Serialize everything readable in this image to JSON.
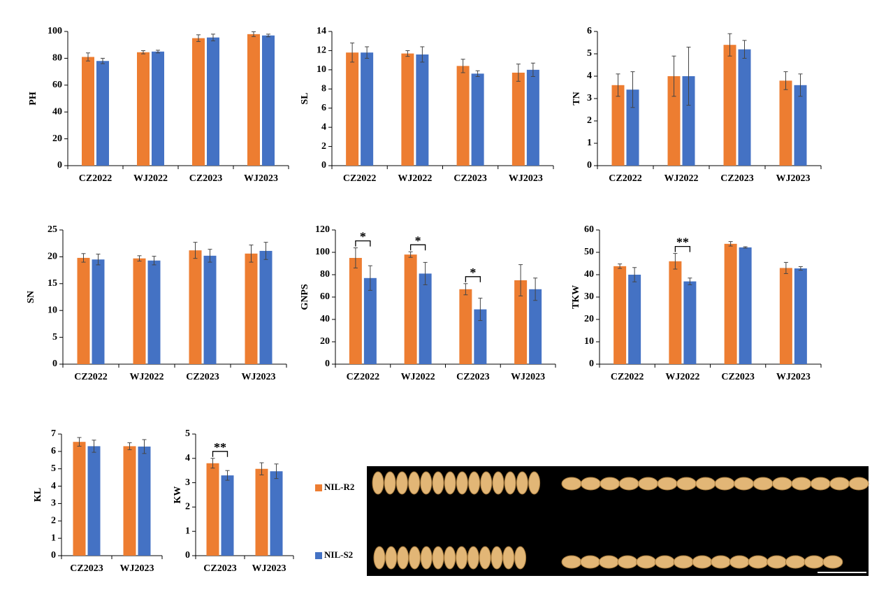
{
  "chart_data": [
    {
      "type": "bar",
      "ylabel": "PH",
      "categories": [
        "CZ2022",
        "WJ2022",
        "CZ2023",
        "WJ2023"
      ],
      "ylim": [
        0,
        100
      ],
      "yticks": [
        0,
        20,
        40,
        60,
        80,
        100
      ],
      "series": [
        {
          "name": "NIL-R2",
          "color": "#ed7d31",
          "values": [
            81,
            84.5,
            95,
            98
          ],
          "errors": [
            3,
            1.2,
            2.5,
            1.8
          ]
        },
        {
          "name": "NIL-S2",
          "color": "#4472c4",
          "values": [
            78,
            85,
            95.5,
            97
          ],
          "errors": [
            2,
            1,
            2.5,
            1
          ]
        }
      ]
    },
    {
      "type": "bar",
      "ylabel": "SL",
      "categories": [
        "CZ2022",
        "WJ2022",
        "CZ2023",
        "WJ2023"
      ],
      "ylim": [
        0,
        14
      ],
      "yticks": [
        0,
        2,
        4,
        6,
        8,
        10,
        12,
        14
      ],
      "series": [
        {
          "name": "NIL-R2",
          "color": "#ed7d31",
          "values": [
            11.8,
            11.7,
            10.4,
            9.7
          ],
          "errors": [
            1.0,
            0.3,
            0.7,
            0.9
          ]
        },
        {
          "name": "NIL-S2",
          "color": "#4472c4",
          "values": [
            11.8,
            11.6,
            9.6,
            10.0
          ],
          "errors": [
            0.6,
            0.8,
            0.3,
            0.7
          ]
        }
      ]
    },
    {
      "type": "bar",
      "ylabel": "TN",
      "categories": [
        "CZ2022",
        "WJ2022",
        "CZ2023",
        "WJ2023"
      ],
      "ylim": [
        0,
        6
      ],
      "yticks": [
        0,
        1,
        2,
        3,
        4,
        5,
        6
      ],
      "series": [
        {
          "name": "NIL-R2",
          "color": "#ed7d31",
          "values": [
            3.6,
            4.0,
            5.4,
            3.8
          ],
          "errors": [
            0.5,
            0.9,
            0.5,
            0.4
          ]
        },
        {
          "name": "NIL-S2",
          "color": "#4472c4",
          "values": [
            3.4,
            4.0,
            5.2,
            3.6
          ],
          "errors": [
            0.8,
            1.3,
            0.4,
            0.5
          ]
        }
      ]
    },
    {
      "type": "bar",
      "ylabel": "SN",
      "categories": [
        "CZ2022",
        "WJ2022",
        "CZ2023",
        "WJ2023"
      ],
      "ylim": [
        0,
        25
      ],
      "yticks": [
        0,
        5,
        10,
        15,
        20,
        25
      ],
      "series": [
        {
          "name": "NIL-R2",
          "color": "#ed7d31",
          "values": [
            19.8,
            19.7,
            21.2,
            20.6
          ],
          "errors": [
            0.8,
            0.5,
            1.5,
            1.6
          ]
        },
        {
          "name": "NIL-S2",
          "color": "#4472c4",
          "values": [
            19.5,
            19.3,
            20.2,
            21.1
          ],
          "errors": [
            1.0,
            0.8,
            1.2,
            1.6
          ]
        }
      ]
    },
    {
      "type": "bar",
      "ylabel": "GNPS",
      "categories": [
        "CZ2022",
        "WJ2022",
        "CZ2023",
        "WJ2023"
      ],
      "ylim": [
        0,
        120
      ],
      "yticks": [
        0,
        20,
        40,
        60,
        80,
        100,
        120
      ],
      "series": [
        {
          "name": "NIL-R2",
          "color": "#ed7d31",
          "values": [
            95,
            98,
            67,
            75
          ],
          "errors": [
            9,
            2.5,
            5,
            14
          ]
        },
        {
          "name": "NIL-S2",
          "color": "#4472c4",
          "values": [
            77,
            81,
            49,
            67
          ],
          "errors": [
            11,
            10,
            10,
            10
          ]
        }
      ],
      "annotations": [
        {
          "category": "CZ2022",
          "label": "*"
        },
        {
          "category": "WJ2022",
          "label": "*"
        },
        {
          "category": "CZ2023",
          "label": "*"
        }
      ]
    },
    {
      "type": "bar",
      "ylabel": "TKW",
      "categories": [
        "CZ2022",
        "WJ2022",
        "CZ2023",
        "WJ2023"
      ],
      "ylim": [
        0,
        60
      ],
      "yticks": [
        0,
        10,
        20,
        30,
        40,
        50,
        60
      ],
      "series": [
        {
          "name": "NIL-R2",
          "color": "#ed7d31",
          "values": [
            43.8,
            46,
            53.8,
            43
          ],
          "errors": [
            1,
            3.5,
            1,
            2.5
          ]
        },
        {
          "name": "NIL-S2",
          "color": "#4472c4",
          "values": [
            40,
            37,
            52.2,
            42.8
          ],
          "errors": [
            3.2,
            1.5,
            0.3,
            0.8
          ]
        }
      ],
      "annotations": [
        {
          "category": "WJ2022",
          "label": "**"
        }
      ]
    },
    {
      "type": "bar",
      "ylabel": "KL",
      "categories": [
        "CZ2023",
        "WJ2023"
      ],
      "ylim": [
        0,
        7
      ],
      "yticks": [
        0,
        1,
        2,
        3,
        4,
        5,
        6,
        7
      ],
      "series": [
        {
          "name": "NIL-R2",
          "color": "#ed7d31",
          "values": [
            6.55,
            6.3
          ],
          "errors": [
            0.25,
            0.2
          ]
        },
        {
          "name": "NIL-S2",
          "color": "#4472c4",
          "values": [
            6.3,
            6.28
          ],
          "errors": [
            0.35,
            0.4
          ]
        }
      ]
    },
    {
      "type": "bar",
      "ylabel": "KW",
      "categories": [
        "CZ2023",
        "WJ2023"
      ],
      "ylim": [
        0,
        5
      ],
      "yticks": [
        0,
        1,
        2,
        3,
        4,
        5
      ],
      "series": [
        {
          "name": "NIL-R2",
          "color": "#ed7d31",
          "values": [
            3.8,
            3.57
          ],
          "errors": [
            0.2,
            0.25
          ]
        },
        {
          "name": "NIL-S2",
          "color": "#4472c4",
          "values": [
            3.3,
            3.47
          ],
          "errors": [
            0.2,
            0.3
          ]
        }
      ],
      "annotations": [
        {
          "category": "CZ2023",
          "label": "**"
        }
      ]
    }
  ]
}
